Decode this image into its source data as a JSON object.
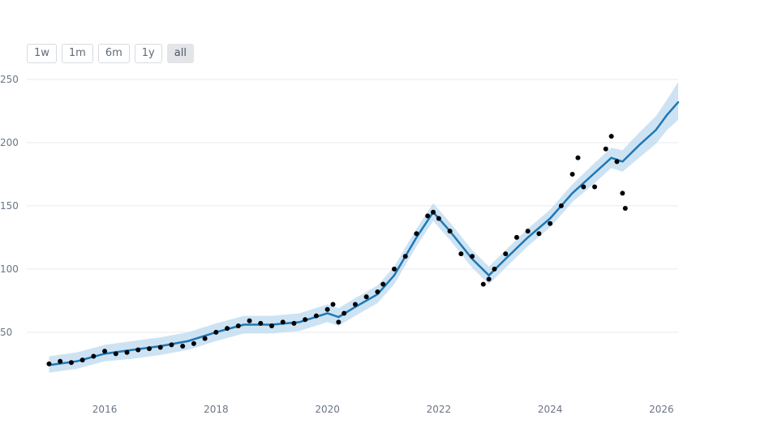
{
  "range_selector": {
    "buttons": [
      {
        "id": "1w",
        "label": "1w",
        "active": false
      },
      {
        "id": "1m",
        "label": "1m",
        "active": false
      },
      {
        "id": "6m",
        "label": "6m",
        "active": false
      },
      {
        "id": "1y",
        "label": "1y",
        "active": false
      },
      {
        "id": "all",
        "label": "all",
        "active": true
      }
    ]
  },
  "chart_data": {
    "type": "scatter",
    "title": "",
    "xlabel": "",
    "ylabel": "",
    "xlim": [
      2014.6,
      2026.3
    ],
    "ylim": [
      5,
      250
    ],
    "x_ticks": [
      2016,
      2018,
      2020,
      2022,
      2024,
      2026
    ],
    "x_tick_labels": [
      "2016",
      "2018",
      "2020",
      "2022",
      "2024",
      "2026"
    ],
    "y_ticks": [
      50,
      100,
      150,
      200,
      250
    ],
    "y_tick_labels": [
      "50",
      "100",
      "150",
      "200",
      "250"
    ],
    "grid": "horizontal",
    "legend": "none",
    "colors": {
      "observed": "#000000",
      "forecast": "#1f77b4",
      "band": "#bcd9ef",
      "grid": "#e8eaf0",
      "tick_text": "#6b7585"
    },
    "series": [
      {
        "kind": "observed-points",
        "points": [
          [
            2015.0,
            25
          ],
          [
            2015.2,
            27
          ],
          [
            2015.4,
            26
          ],
          [
            2015.6,
            28
          ],
          [
            2015.8,
            31
          ],
          [
            2016.0,
            35
          ],
          [
            2016.2,
            33
          ],
          [
            2016.4,
            34
          ],
          [
            2016.6,
            36
          ],
          [
            2016.8,
            37
          ],
          [
            2017.0,
            38
          ],
          [
            2017.2,
            40
          ],
          [
            2017.4,
            39
          ],
          [
            2017.6,
            41
          ],
          [
            2017.8,
            45
          ],
          [
            2018.0,
            50
          ],
          [
            2018.2,
            53
          ],
          [
            2018.4,
            55
          ],
          [
            2018.6,
            59
          ],
          [
            2018.8,
            57
          ],
          [
            2019.0,
            55
          ],
          [
            2019.2,
            58
          ],
          [
            2019.4,
            57
          ],
          [
            2019.6,
            60
          ],
          [
            2019.8,
            63
          ],
          [
            2020.0,
            68
          ],
          [
            2020.1,
            72
          ],
          [
            2020.2,
            58
          ],
          [
            2020.3,
            65
          ],
          [
            2020.5,
            72
          ],
          [
            2020.7,
            78
          ],
          [
            2020.9,
            82
          ],
          [
            2021.0,
            88
          ],
          [
            2021.2,
            100
          ],
          [
            2021.4,
            110
          ],
          [
            2021.6,
            128
          ],
          [
            2021.8,
            142
          ],
          [
            2021.9,
            145
          ],
          [
            2022.0,
            140
          ],
          [
            2022.2,
            130
          ],
          [
            2022.4,
            112
          ],
          [
            2022.6,
            110
          ],
          [
            2022.8,
            88
          ],
          [
            2022.9,
            92
          ],
          [
            2023.0,
            100
          ],
          [
            2023.2,
            112
          ],
          [
            2023.4,
            125
          ],
          [
            2023.6,
            130
          ],
          [
            2023.8,
            128
          ],
          [
            2024.0,
            136
          ],
          [
            2024.2,
            150
          ],
          [
            2024.4,
            175
          ],
          [
            2024.5,
            188
          ],
          [
            2024.6,
            165
          ],
          [
            2024.8,
            165
          ],
          [
            2025.0,
            195
          ],
          [
            2025.1,
            205
          ],
          [
            2025.2,
            185
          ],
          [
            2025.3,
            160
          ],
          [
            2025.35,
            148
          ]
        ]
      },
      {
        "kind": "forecast-line",
        "points": [
          [
            2015.0,
            24
          ],
          [
            2015.5,
            27
          ],
          [
            2016.0,
            33
          ],
          [
            2016.5,
            36
          ],
          [
            2017.0,
            39
          ],
          [
            2017.5,
            43
          ],
          [
            2018.0,
            50
          ],
          [
            2018.5,
            56
          ],
          [
            2019.0,
            56
          ],
          [
            2019.5,
            58
          ],
          [
            2020.0,
            65
          ],
          [
            2020.2,
            62
          ],
          [
            2020.5,
            70
          ],
          [
            2020.9,
            80
          ],
          [
            2021.2,
            95
          ],
          [
            2021.6,
            125
          ],
          [
            2021.9,
            145
          ],
          [
            2022.2,
            130
          ],
          [
            2022.6,
            108
          ],
          [
            2022.9,
            95
          ],
          [
            2023.2,
            108
          ],
          [
            2023.6,
            125
          ],
          [
            2024.0,
            140
          ],
          [
            2024.4,
            160
          ],
          [
            2024.8,
            176
          ],
          [
            2025.1,
            188
          ],
          [
            2025.3,
            185
          ],
          [
            2025.6,
            198
          ],
          [
            2025.9,
            210
          ],
          [
            2026.1,
            222
          ],
          [
            2026.3,
            232
          ]
        ]
      },
      {
        "kind": "uncertainty-band",
        "points": [
          [
            2015.0,
            18,
            31
          ],
          [
            2015.5,
            21,
            34
          ],
          [
            2016.0,
            27,
            40
          ],
          [
            2016.5,
            29,
            43
          ],
          [
            2017.0,
            32,
            46
          ],
          [
            2017.5,
            36,
            50
          ],
          [
            2018.0,
            43,
            57
          ],
          [
            2018.5,
            49,
            63
          ],
          [
            2019.0,
            49,
            63
          ],
          [
            2019.5,
            51,
            65
          ],
          [
            2020.0,
            58,
            72
          ],
          [
            2020.2,
            55,
            69
          ],
          [
            2020.5,
            63,
            77
          ],
          [
            2020.9,
            73,
            87
          ],
          [
            2021.2,
            88,
            102
          ],
          [
            2021.6,
            118,
            132
          ],
          [
            2021.9,
            138,
            152
          ],
          [
            2022.2,
            123,
            137
          ],
          [
            2022.6,
            101,
            115
          ],
          [
            2022.9,
            88,
            102
          ],
          [
            2023.2,
            101,
            115
          ],
          [
            2023.6,
            118,
            132
          ],
          [
            2024.0,
            133,
            147
          ],
          [
            2024.4,
            153,
            167
          ],
          [
            2024.8,
            168,
            184
          ],
          [
            2025.1,
            180,
            196
          ],
          [
            2025.3,
            177,
            194
          ],
          [
            2025.6,
            188,
            208
          ],
          [
            2025.9,
            199,
            221
          ],
          [
            2026.1,
            210,
            234
          ],
          [
            2026.3,
            218,
            248
          ]
        ]
      }
    ]
  }
}
